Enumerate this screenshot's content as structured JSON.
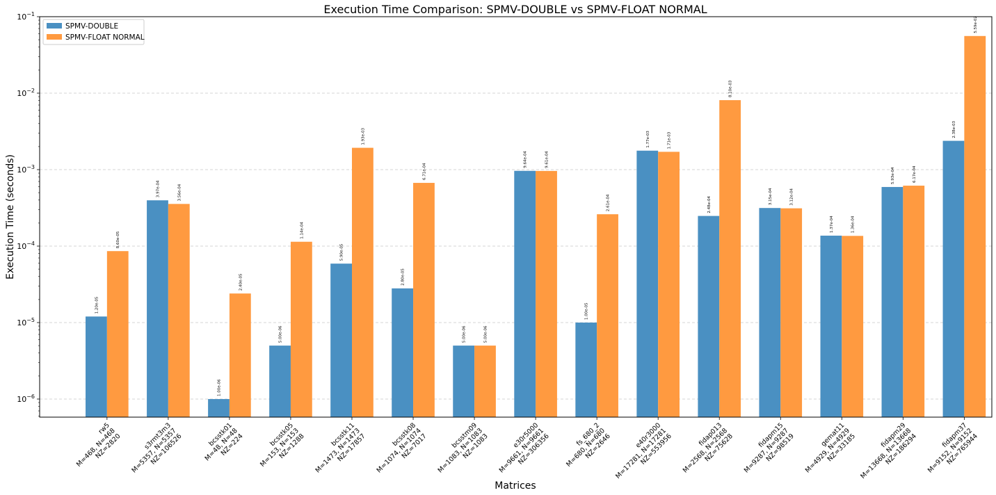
{
  "chart_data": {
    "type": "bar",
    "title": "Execution Time Comparison: SPMV-DOUBLE vs SPMV-FLOAT NORMAL",
    "xlabel": "Matrices",
    "ylabel": "Execution Time (seconds)",
    "yscale": "log",
    "ylim": [
      5.8e-07,
      0.1
    ],
    "grid": "y-dashed",
    "legend_position": "top-left",
    "categories": [
      [
        "rw5",
        "M=468, N=468",
        "NZ=2820"
      ],
      [
        "s3rmt3m3",
        "M=5357, N=5357",
        "NZ=106526"
      ],
      [
        "bcsstk01",
        "M=48, N=48",
        "NZ=224"
      ],
      [
        "bcsstk05",
        "M=153, N=153",
        "NZ=1288"
      ],
      [
        "bcsstk11",
        "M=1473, N=1473",
        "NZ=17857"
      ],
      [
        "bcsstk08",
        "M=1074, N=1074",
        "NZ=7017"
      ],
      [
        "bcsstm09",
        "M=1083, N=1083",
        "NZ=1083"
      ],
      [
        "e30r5000",
        "M=9661, N=9661",
        "NZ=306356"
      ],
      [
        "fs_680_2",
        "M=680, N=680",
        "NZ=2646"
      ],
      [
        "e40r3000",
        "M=17281, N=17281",
        "NZ=553956"
      ],
      [
        "fidap013",
        "M=2568, N=2568",
        "NZ=75628"
      ],
      [
        "fidapm15",
        "M=9287, N=9287",
        "NZ=98519"
      ],
      [
        "gemat11",
        "M=4929, N=4929",
        "NZ=33185"
      ],
      [
        "fidapm29",
        "M=13668, N=13668",
        "NZ=186294"
      ],
      [
        "fidapm37",
        "M=9152, N=9152",
        "NZ=765944"
      ]
    ],
    "series": [
      {
        "name": "SPMV-DOUBLE",
        "color": "#4a90c2",
        "values": [
          1.2e-05,
          0.000397,
          1e-06,
          5e-06,
          5.9e-05,
          2.8e-05,
          5e-06,
          0.000964,
          1e-05,
          0.00177,
          0.000248,
          0.000315,
          0.000137,
          0.000593,
          0.00238
        ],
        "labels": [
          "1.20e-05",
          "3.97e-04",
          "1.00e-06",
          "5.00e-06",
          "5.90e-05",
          "2.80e-05",
          "5.00e-06",
          "9.64e-04",
          "1.00e-05",
          "1.77e-03",
          "2.48e-04",
          "3.15e-04",
          "1.37e-04",
          "5.93e-04",
          "2.38e-03"
        ]
      },
      {
        "name": "SPMV-FLOAT NORMAL",
        "color": "#ff9a40",
        "values": [
          8.6e-05,
          0.000356,
          2.4e-05,
          0.000114,
          0.00193,
          0.000671,
          5e-06,
          0.000961,
          0.000261,
          0.00171,
          0.0081,
          0.000312,
          0.000136,
          0.000617,
          0.0559
        ],
        "labels": [
          "8.60e-05",
          "3.56e-04",
          "2.40e-05",
          "1.14e-04",
          "1.93e-03",
          "6.71e-04",
          "5.00e-06",
          "9.61e-04",
          "2.61e-04",
          "1.71e-03",
          "8.10e-03",
          "3.12e-04",
          "1.36e-04",
          "6.17e-04",
          "5.59e-02"
        ]
      }
    ],
    "yticks": [
      {
        "value": 1e-06,
        "base": "10",
        "exp": "−6"
      },
      {
        "value": 1e-05,
        "base": "10",
        "exp": "−5"
      },
      {
        "value": 0.0001,
        "base": "10",
        "exp": "−4"
      },
      {
        "value": 0.001,
        "base": "10",
        "exp": "−3"
      },
      {
        "value": 0.01,
        "base": "10",
        "exp": "−2"
      },
      {
        "value": 0.1,
        "base": "10",
        "exp": "−1"
      }
    ]
  }
}
